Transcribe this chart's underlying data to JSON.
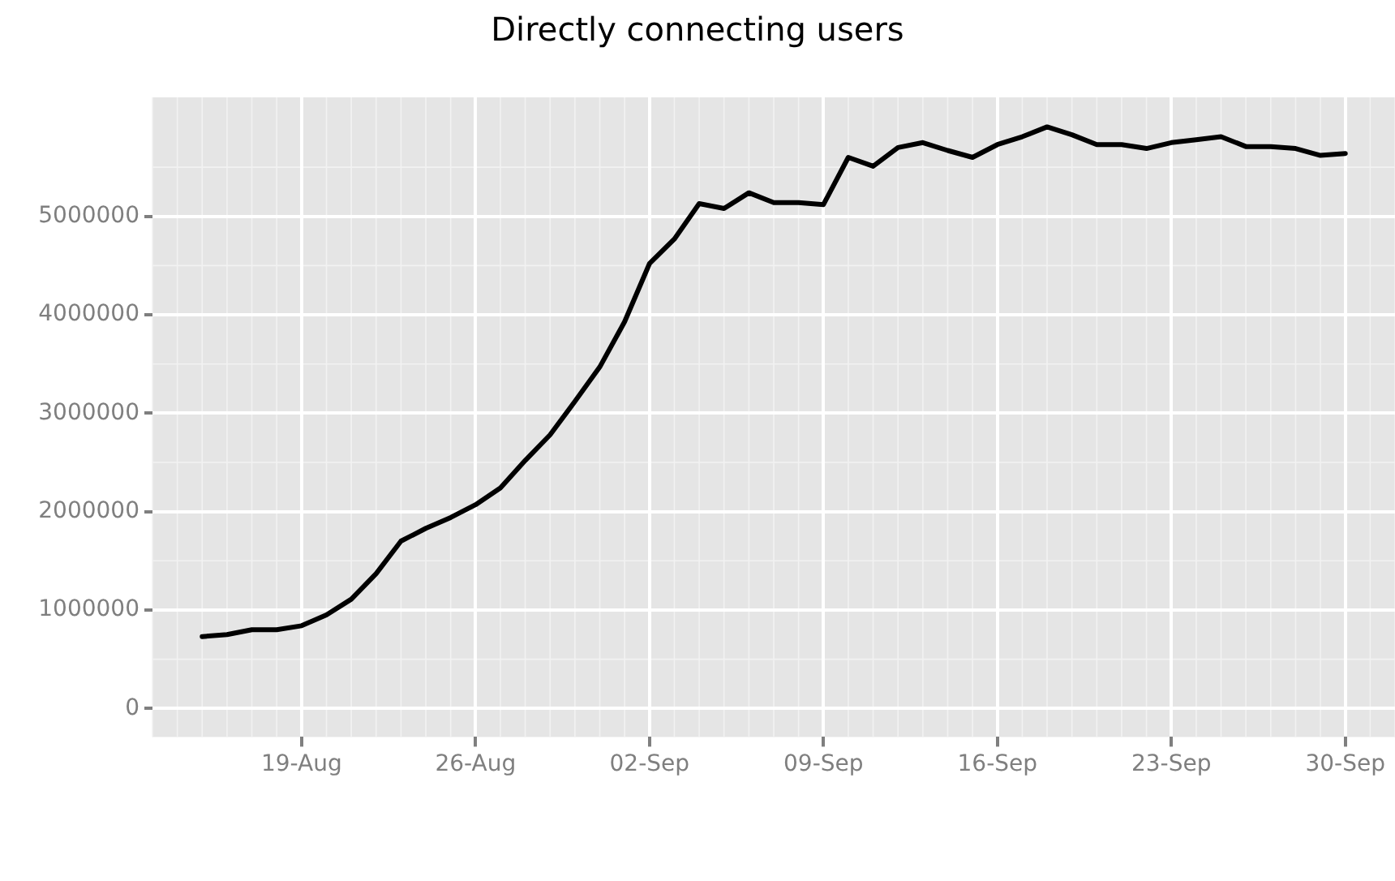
{
  "chart_data": {
    "type": "line",
    "title": "Directly connecting users",
    "x": [
      "--08-15",
      "--08-16",
      "--08-17",
      "--08-18",
      "--08-19",
      "--08-20",
      "--08-21",
      "--08-22",
      "--08-23",
      "--08-24",
      "--08-25",
      "--08-26",
      "--08-27",
      "--08-28",
      "--08-29",
      "--08-30",
      "--08-31",
      "--09-01",
      "--09-02",
      "--09-03",
      "--09-04",
      "--09-05",
      "--09-06",
      "--09-07",
      "--09-08",
      "--09-09",
      "--09-10",
      "--09-11",
      "--09-12",
      "--09-13",
      "--09-14",
      "--09-15",
      "--09-16",
      "--09-17",
      "--09-18",
      "--09-19",
      "--09-20",
      "--09-21",
      "--09-22",
      "--09-23",
      "--09-24",
      "--09-25",
      "--09-26",
      "--09-27",
      "--09-28",
      "--09-29",
      "--09-30"
    ],
    "series": [
      {
        "color": "#000000",
        "values": [
          730000,
          750000,
          800000,
          800000,
          840000,
          950000,
          1110000,
          1370000,
          1700000,
          1830000,
          1940000,
          2070000,
          2240000,
          2520000,
          2780000,
          3120000,
          3470000,
          3930000,
          4520000,
          4770000,
          5130000,
          5080000,
          5240000,
          5140000,
          5140000,
          5120000,
          5600000,
          5510000,
          5700000,
          5750000,
          5670000,
          5600000,
          5730000,
          5810000,
          5910000,
          5830000,
          5730000,
          5730000,
          5690000,
          5750000,
          5780000,
          5810000,
          5710000,
          5710000,
          5690000,
          5620000,
          5640000
        ]
      }
    ],
    "xlim": [
      "--08-13",
      "--10-02"
    ],
    "xticks": [
      {
        "value": "--08-19",
        "label": "19-Aug"
      },
      {
        "value": "--08-26",
        "label": "26-Aug"
      },
      {
        "value": "--09-02",
        "label": "02-Sep"
      },
      {
        "value": "--09-09",
        "label": "09-Sep"
      },
      {
        "value": "--09-16",
        "label": "16-Sep"
      },
      {
        "value": "--09-23",
        "label": "23-Sep"
      },
      {
        "value": "--09-30",
        "label": "30-Sep"
      }
    ],
    "ylim": [
      -290000,
      6210000
    ],
    "yticks": [
      0,
      1000000,
      2000000,
      3000000,
      4000000,
      5000000
    ],
    "grid": true,
    "legend": false,
    "marker": "none",
    "line_style": "solid"
  }
}
